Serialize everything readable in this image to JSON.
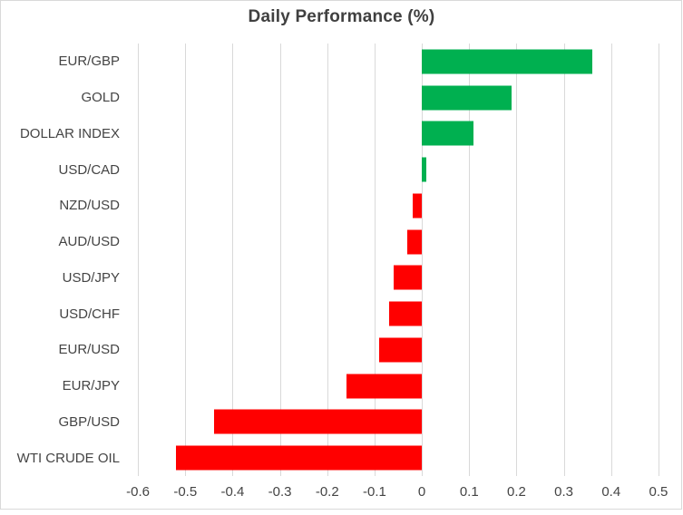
{
  "chart_data": {
    "type": "bar",
    "orientation": "horizontal",
    "title": "Daily Performance (%)",
    "categories": [
      "EUR/GBP",
      "GOLD",
      "DOLLAR INDEX",
      "USD/CAD",
      "NZD/USD",
      "AUD/USD",
      "USD/JPY",
      "USD/CHF",
      "EUR/USD",
      "EUR/JPY",
      "GBP/USD",
      "WTI CRUDE OIL"
    ],
    "values": [
      0.36,
      0.19,
      0.11,
      0.01,
      -0.02,
      -0.03,
      -0.06,
      -0.07,
      -0.09,
      -0.16,
      -0.44,
      -0.52
    ],
    "xlim": [
      -0.65,
      0.55
    ],
    "x_ticks": [
      -0.6,
      -0.5,
      -0.4,
      -0.3,
      -0.2,
      -0.1,
      0,
      0.1,
      0.2,
      0.3,
      0.4,
      0.5
    ],
    "x_tick_labels": [
      "-0.6",
      "-0.5",
      "-0.4",
      "-0.3",
      "-0.2",
      "-0.1",
      "0",
      "0.1",
      "0.2",
      "0.3",
      "0.4",
      "0.5"
    ],
    "grid": true,
    "legend": "none",
    "colors": {
      "positive": "#00B050",
      "negative": "#FF0000",
      "gridline": "#D9D9D9",
      "border": "#D9D9D9",
      "text": "#404040",
      "background": "#FFFFFF"
    }
  }
}
